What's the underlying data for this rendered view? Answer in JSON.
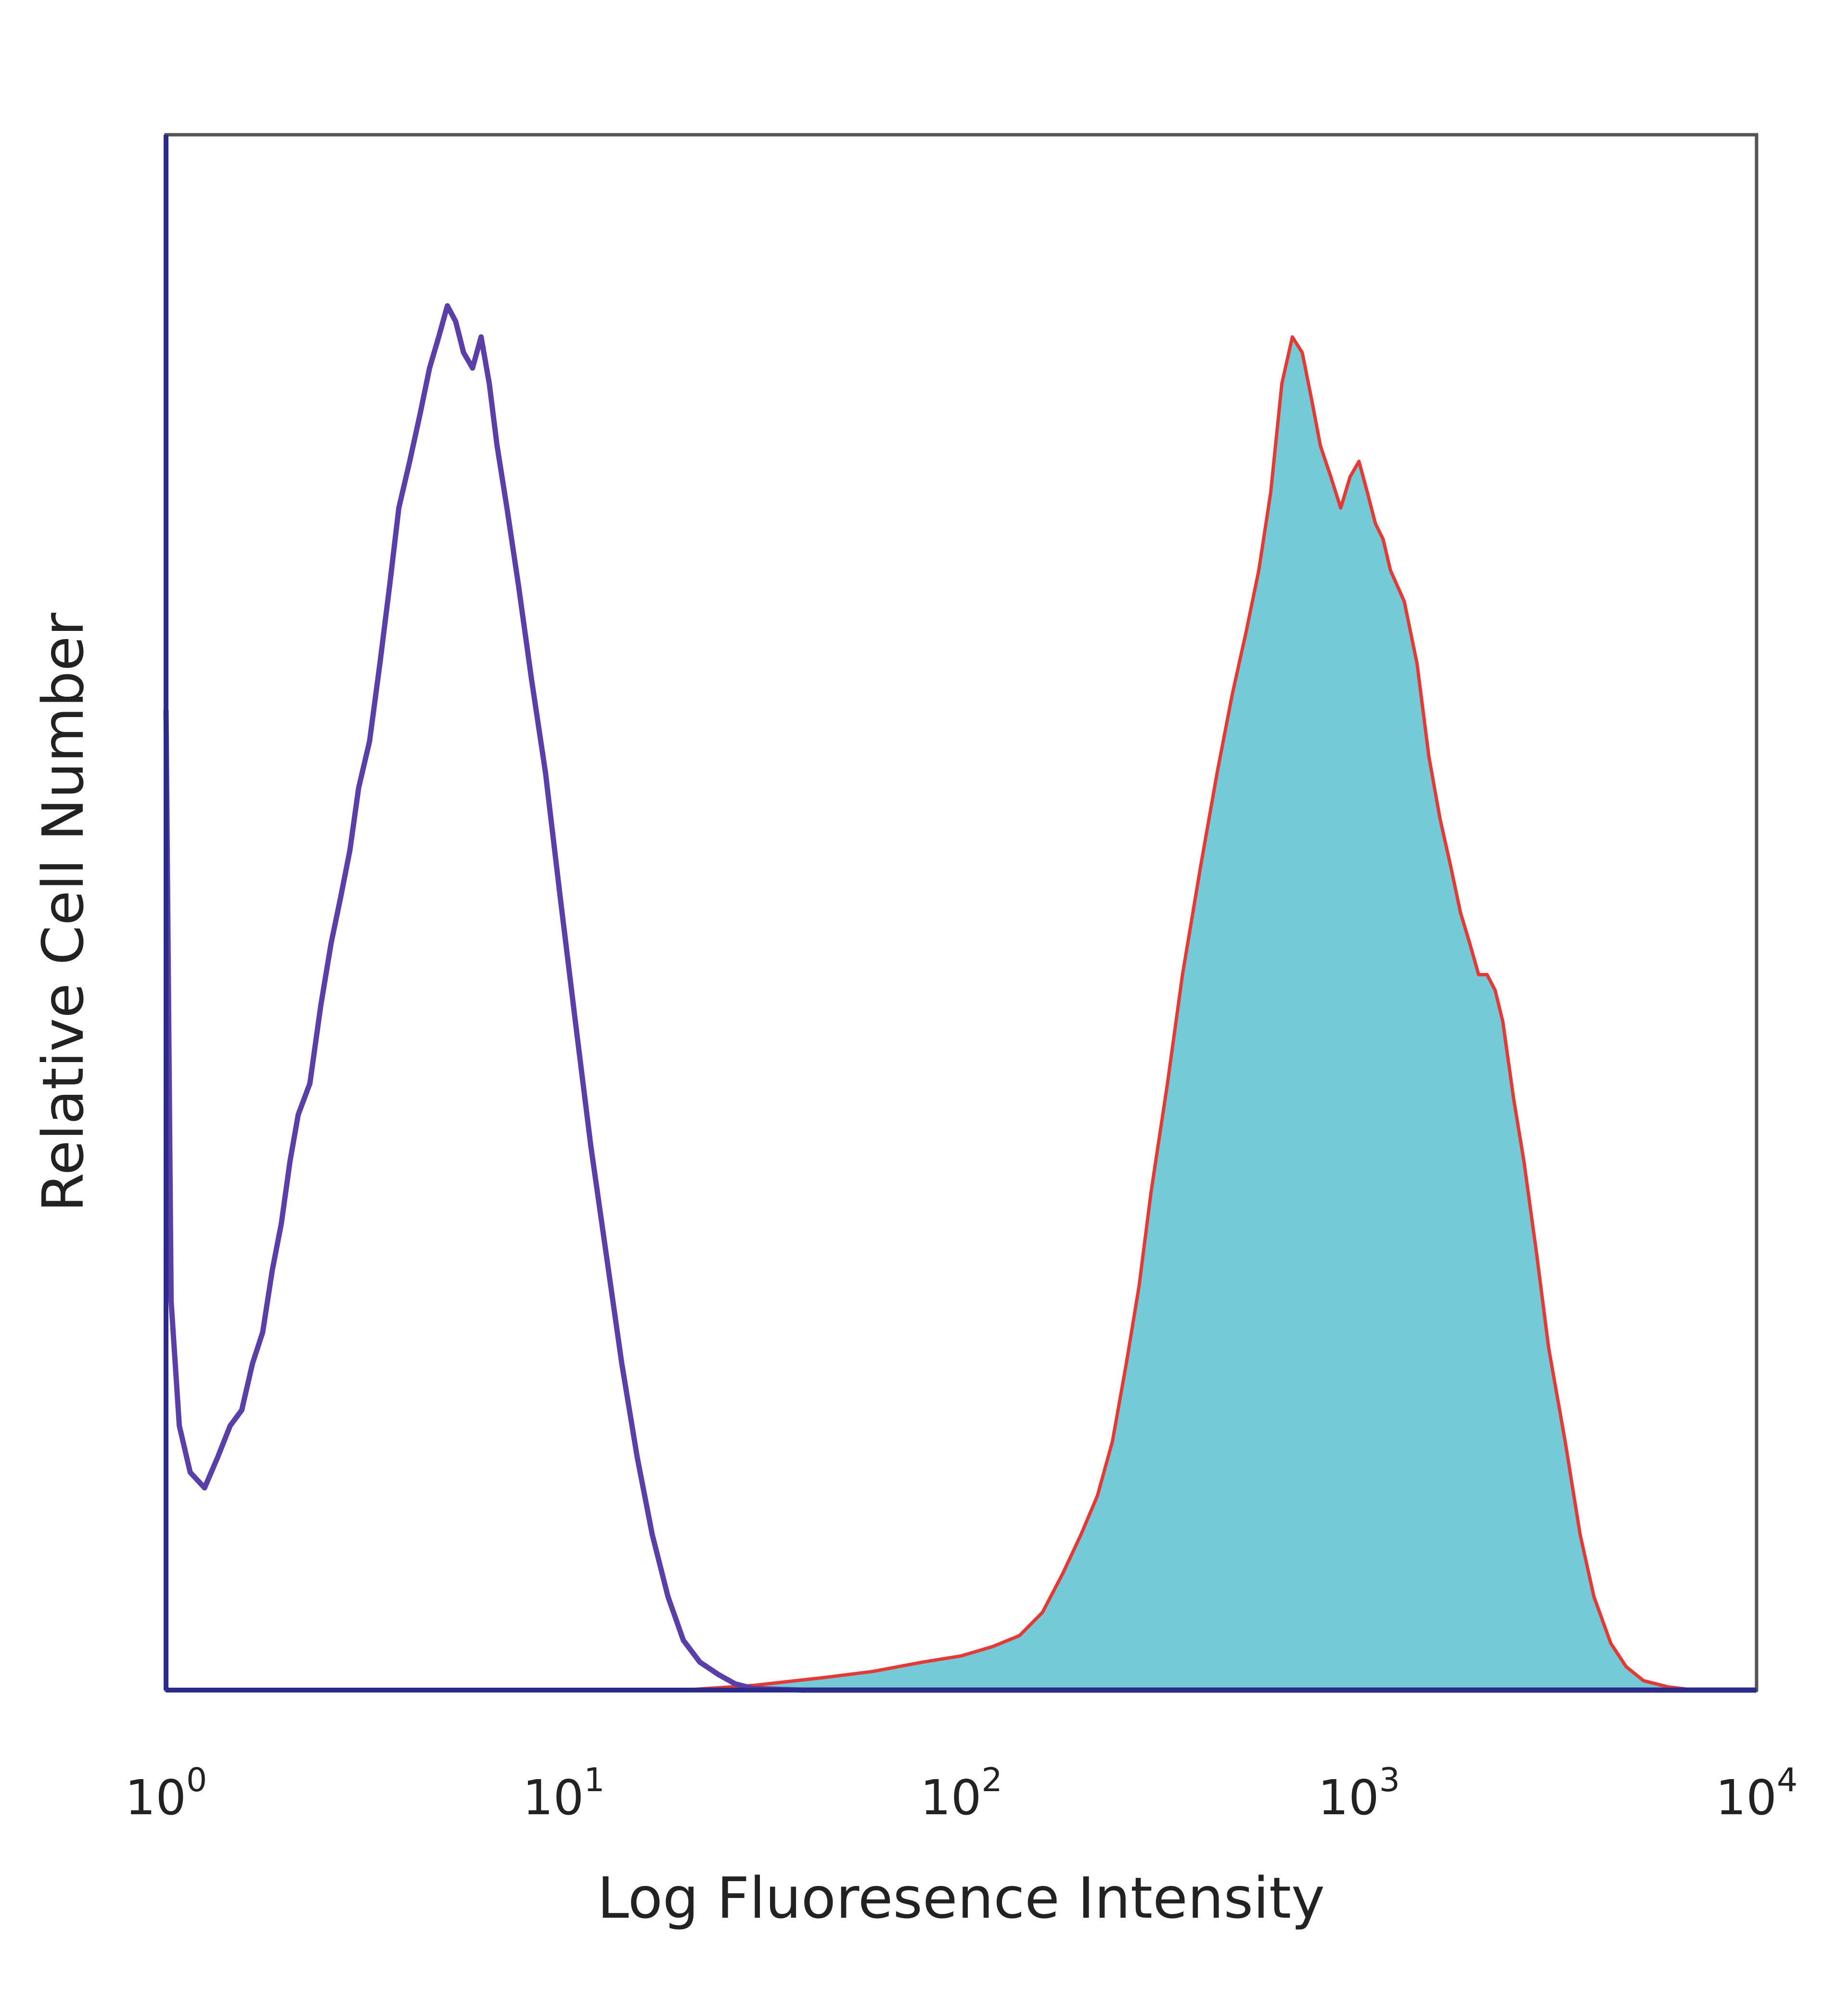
{
  "chart_data": {
    "type": "area",
    "xlabel": "Log Fluoresence Intensity",
    "ylabel": "Relative Cell Number",
    "x_scale": "log",
    "xlim": [
      1,
      10000
    ],
    "ylim": [
      0,
      100
    ],
    "grid": false,
    "x_ticks": [
      {
        "value": 1,
        "base": "10",
        "exponent": "0"
      },
      {
        "value": 10,
        "base": "10",
        "exponent": "1"
      },
      {
        "value": 100,
        "base": "10",
        "exponent": "2"
      },
      {
        "value": 1000,
        "base": "10",
        "exponent": "3"
      },
      {
        "value": 10000,
        "base": "10",
        "exponent": "4"
      }
    ],
    "series": [
      {
        "style": "outline",
        "color": "#5B3FA8",
        "points": [
          [
            1.0,
            63
          ],
          [
            1.03,
            25
          ],
          [
            1.08,
            17
          ],
          [
            1.15,
            14
          ],
          [
            1.25,
            13
          ],
          [
            1.35,
            15
          ],
          [
            1.45,
            17
          ],
          [
            1.55,
            18
          ],
          [
            1.65,
            21
          ],
          [
            1.75,
            23
          ],
          [
            1.85,
            27
          ],
          [
            1.95,
            30
          ],
          [
            2.05,
            34
          ],
          [
            2.15,
            37
          ],
          [
            2.3,
            39
          ],
          [
            2.45,
            44
          ],
          [
            2.6,
            48
          ],
          [
            2.75,
            51
          ],
          [
            2.9,
            54
          ],
          [
            3.05,
            58
          ],
          [
            3.25,
            61
          ],
          [
            3.45,
            66
          ],
          [
            3.65,
            71
          ],
          [
            3.85,
            76
          ],
          [
            4.1,
            79
          ],
          [
            4.35,
            82
          ],
          [
            4.6,
            85
          ],
          [
            4.85,
            87
          ],
          [
            5.1,
            89
          ],
          [
            5.35,
            88
          ],
          [
            5.6,
            86
          ],
          [
            5.9,
            85
          ],
          [
            6.2,
            87
          ],
          [
            6.5,
            84
          ],
          [
            6.8,
            80
          ],
          [
            7.2,
            76
          ],
          [
            7.7,
            71
          ],
          [
            8.3,
            65
          ],
          [
            9.0,
            59
          ],
          [
            9.8,
            51
          ],
          [
            10.7,
            43
          ],
          [
            11.7,
            35
          ],
          [
            12.8,
            28
          ],
          [
            14.0,
            21
          ],
          [
            15.3,
            15
          ],
          [
            16.7,
            10
          ],
          [
            18.3,
            6
          ],
          [
            20.0,
            3.2
          ],
          [
            22.0,
            1.8
          ],
          [
            24.5,
            1.0
          ],
          [
            27.0,
            0.4
          ],
          [
            30.0,
            0.1
          ],
          [
            40.0,
            0
          ],
          [
            60.0,
            0
          ],
          [
            10000,
            0
          ]
        ]
      },
      {
        "style": "filled",
        "color": "#E53935",
        "fill": "#74CAD6",
        "points": [
          [
            1,
            0
          ],
          [
            20,
            0
          ],
          [
            30,
            0.3
          ],
          [
            45,
            0.8
          ],
          [
            60,
            1.2
          ],
          [
            80,
            1.8
          ],
          [
            100,
            2.2
          ],
          [
            120,
            2.8
          ],
          [
            140,
            3.5
          ],
          [
            160,
            5.0
          ],
          [
            180,
            7.5
          ],
          [
            200,
            10
          ],
          [
            220,
            12.5
          ],
          [
            240,
            16
          ],
          [
            260,
            21
          ],
          [
            280,
            26
          ],
          [
            300,
            32
          ],
          [
            330,
            39
          ],
          [
            360,
            46
          ],
          [
            400,
            53
          ],
          [
            440,
            59
          ],
          [
            480,
            64
          ],
          [
            520,
            68
          ],
          [
            560,
            72
          ],
          [
            600,
            77
          ],
          [
            640,
            84
          ],
          [
            680,
            87
          ],
          [
            720,
            86
          ],
          [
            760,
            83
          ],
          [
            800,
            80
          ],
          [
            850,
            78
          ],
          [
            900,
            76
          ],
          [
            950,
            78
          ],
          [
            1000,
            79
          ],
          [
            1050,
            77
          ],
          [
            1100,
            75
          ],
          [
            1150,
            74
          ],
          [
            1200,
            72
          ],
          [
            1300,
            70
          ],
          [
            1400,
            66
          ],
          [
            1500,
            60
          ],
          [
            1600,
            56
          ],
          [
            1700,
            53
          ],
          [
            1800,
            50
          ],
          [
            1900,
            48
          ],
          [
            2000,
            46
          ],
          [
            2100,
            46
          ],
          [
            2200,
            45
          ],
          [
            2300,
            43
          ],
          [
            2450,
            38
          ],
          [
            2600,
            34
          ],
          [
            2800,
            28
          ],
          [
            3000,
            22
          ],
          [
            3300,
            16
          ],
          [
            3600,
            10
          ],
          [
            3900,
            6
          ],
          [
            4300,
            3
          ],
          [
            4700,
            1.5
          ],
          [
            5200,
            0.6
          ],
          [
            6000,
            0.2
          ],
          [
            7000,
            0
          ],
          [
            10000,
            0
          ]
        ]
      }
    ]
  }
}
